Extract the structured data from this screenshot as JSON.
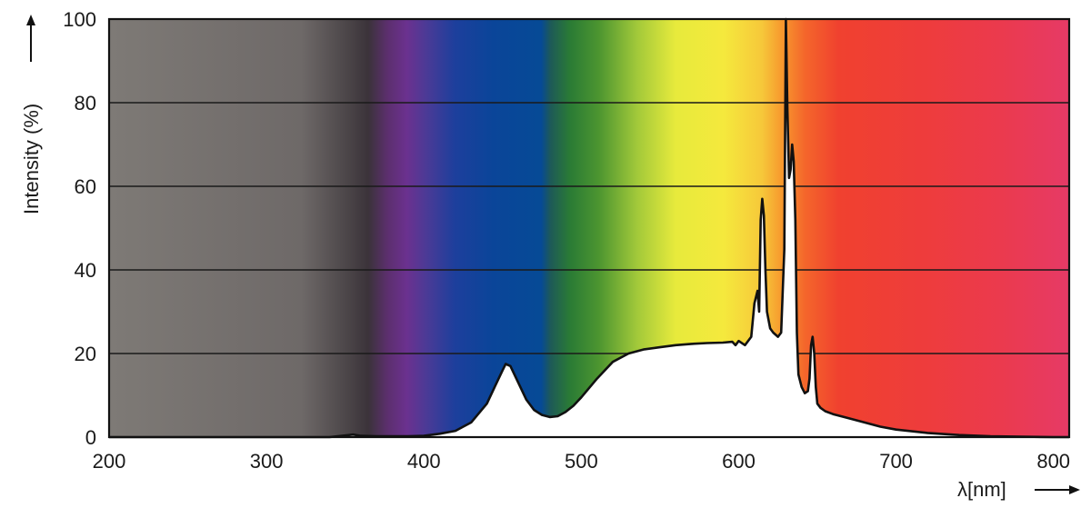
{
  "chart_data": {
    "type": "area",
    "xlabel": "λ[nm]",
    "ylabel": "Intensity (%)",
    "xlim": [
      200,
      810
    ],
    "ylim": [
      0,
      100
    ],
    "x_ticks": [
      "200",
      "300",
      "400",
      "500",
      "600",
      "700",
      "800"
    ],
    "y_ticks": [
      "0",
      "20",
      "40",
      "60",
      "80",
      "100"
    ],
    "grid": "horizontal",
    "background": "visible color spectrum band",
    "series": [
      {
        "x": [
          200,
          340,
          350,
          355,
          360,
          370,
          390,
          400,
          410,
          420,
          430,
          440,
          445,
          450,
          452,
          455,
          460,
          465,
          470,
          475,
          480,
          485,
          490,
          495,
          500,
          510,
          520,
          530,
          540,
          550,
          560,
          570,
          580,
          590,
          596,
          598,
          600,
          604,
          608,
          610,
          612,
          613,
          614,
          615,
          616,
          617,
          618,
          620,
          622,
          625,
          627,
          629,
          630,
          631,
          632,
          633,
          634,
          635,
          636,
          637,
          638,
          640,
          642,
          644,
          645,
          646,
          647,
          648,
          649,
          650,
          652,
          655,
          660,
          665,
          670,
          680,
          690,
          700,
          720,
          740,
          760,
          780,
          800,
          810
        ],
        "y": [
          0,
          0,
          0.4,
          0.6,
          0.3,
          0.2,
          0.2,
          0.3,
          0.8,
          1.5,
          3.5,
          8,
          12,
          16,
          17.5,
          17,
          13,
          9,
          6.5,
          5.3,
          4.8,
          5,
          6,
          7.5,
          9.5,
          14,
          18,
          20,
          21,
          21.5,
          22,
          22.3,
          22.5,
          22.6,
          22.8,
          22,
          23,
          22,
          24,
          32,
          35,
          30,
          52,
          57,
          53,
          40,
          30,
          26,
          25,
          24,
          25,
          45,
          100,
          78,
          62,
          64,
          70,
          66,
          52,
          25,
          15,
          12,
          10.5,
          11,
          14,
          22,
          24,
          20,
          12,
          8,
          7,
          6.2,
          5.5,
          5,
          4.5,
          3.5,
          2.5,
          1.8,
          1,
          0.5,
          0.2,
          0.1,
          0,
          0
        ]
      }
    ]
  }
}
